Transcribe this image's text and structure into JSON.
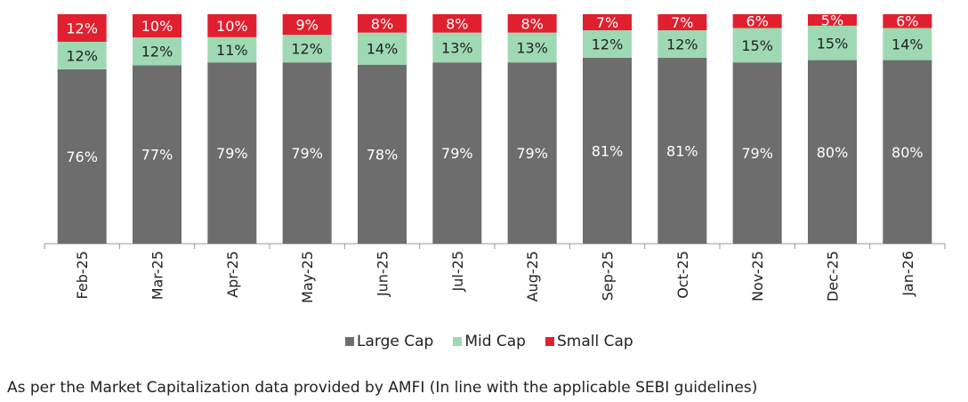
{
  "chart_data": {
    "type": "bar",
    "stacked": true,
    "percent_scale": true,
    "categories": [
      "Feb-25",
      "Mar-25",
      "Apr-25",
      "May-25",
      "Jun-25",
      "Jul-25",
      "Aug-25",
      "Sep-25",
      "Oct-25",
      "Nov-25",
      "Dec-25",
      "Jan-26"
    ],
    "series": [
      {
        "name": "Large Cap",
        "color": "#6d6d6d",
        "label_color": "#ffffff",
        "values": [
          76,
          77,
          79,
          79,
          78,
          79,
          79,
          81,
          81,
          79,
          80,
          80
        ]
      },
      {
        "name": "Mid Cap",
        "color": "#9ed9b3",
        "label_color": "#222222",
        "values": [
          12,
          12,
          11,
          12,
          14,
          13,
          13,
          12,
          12,
          15,
          15,
          14
        ]
      },
      {
        "name": "Small Cap",
        "color": "#e0202f",
        "label_color": "#ffffff",
        "values": [
          12,
          10,
          10,
          9,
          8,
          8,
          8,
          7,
          7,
          6,
          5,
          6
        ]
      }
    ],
    "ylim": [
      0,
      100
    ],
    "legend_position": "bottom-center",
    "label_suffix": "%"
  },
  "footnote": "As per the Market Capitalization data provided by AMFI (In line with the applicable SEBI guidelines)"
}
